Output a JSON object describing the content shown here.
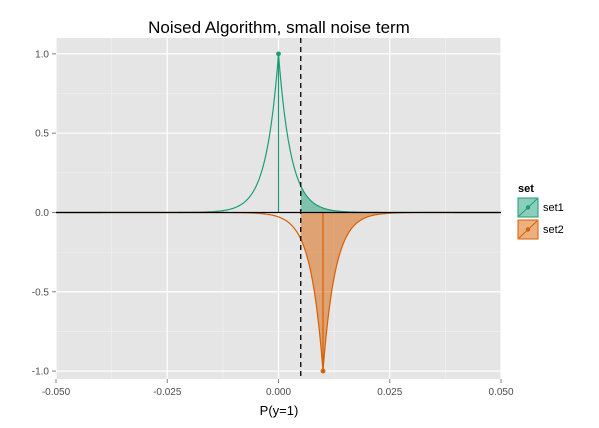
{
  "chart_data": {
    "type": "line",
    "title": "Noised Algorithm, small noise term",
    "xlabel": "P(y=1)",
    "ylabel": "",
    "xlim": [
      -0.05,
      0.05
    ],
    "ylim": [
      -1.05,
      1.1
    ],
    "x_ticks": [
      -0.05,
      -0.025,
      0.0,
      0.025,
      0.05
    ],
    "x_tick_labels": [
      "-0.050",
      "-0.025",
      "0.000",
      "0.025",
      "0.050"
    ],
    "y_ticks": [
      -1.0,
      -0.5,
      0.0,
      0.5,
      1.0
    ],
    "y_tick_labels": [
      "-1.0",
      "-0.5",
      "0.0",
      "0.5",
      "1.0"
    ],
    "grid": true,
    "vline_dashed_x": 0.005,
    "legend": {
      "title": "set",
      "placement": "right"
    },
    "series": [
      {
        "name": "set1",
        "color": "#1b9e77",
        "center": 0.0,
        "peak": 1.0,
        "shade_from_x": 0.005,
        "shade_to_x": 0.05
      },
      {
        "name": "set2",
        "color": "#d95f02",
        "center": 0.01,
        "peak": -1.0,
        "shade_from_x": 0.005,
        "shade_to_x": 0.05
      }
    ]
  }
}
